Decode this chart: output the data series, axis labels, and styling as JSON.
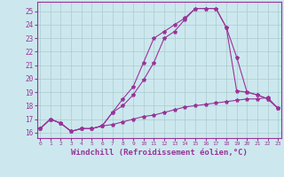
{
  "bg_color": "#cce8ee",
  "grid_color": "#aacccc",
  "line_color": "#993399",
  "marker": "*",
  "markersize": 3,
  "linewidth": 0.8,
  "xlabel": "Windchill (Refroidissement éolien,°C)",
  "xlabel_fontsize": 6.5,
  "ytick_labels": [
    "16",
    "17",
    "18",
    "19",
    "20",
    "21",
    "22",
    "23",
    "24",
    "25"
  ],
  "ytick_vals": [
    16,
    17,
    18,
    19,
    20,
    21,
    22,
    23,
    24,
    25
  ],
  "xtick_vals": [
    0,
    1,
    2,
    3,
    4,
    5,
    6,
    7,
    8,
    9,
    10,
    11,
    12,
    13,
    14,
    15,
    16,
    17,
    18,
    19,
    20,
    21,
    22,
    23
  ],
  "xlim": [
    -0.3,
    23.3
  ],
  "ylim": [
    15.6,
    25.7
  ],
  "series": [
    [
      16.3,
      17.0,
      16.7,
      16.1,
      16.3,
      16.3,
      16.5,
      16.6,
      16.8,
      17.0,
      17.2,
      17.3,
      17.5,
      17.7,
      17.9,
      18.0,
      18.1,
      18.2,
      18.3,
      18.4,
      18.5,
      18.5,
      18.6,
      17.8
    ],
    [
      16.3,
      17.0,
      16.7,
      16.1,
      16.3,
      16.3,
      16.5,
      17.5,
      18.0,
      18.8,
      19.9,
      21.2,
      23.0,
      23.5,
      24.4,
      25.2,
      25.2,
      25.2,
      23.8,
      21.6,
      19.0,
      18.8,
      18.5,
      17.8
    ],
    [
      16.3,
      17.0,
      16.7,
      16.1,
      16.3,
      16.3,
      16.5,
      17.5,
      18.5,
      19.4,
      21.2,
      23.0,
      23.5,
      24.0,
      24.5,
      25.2,
      25.2,
      25.2,
      23.8,
      19.1,
      19.0,
      18.8,
      18.5,
      17.8
    ]
  ]
}
